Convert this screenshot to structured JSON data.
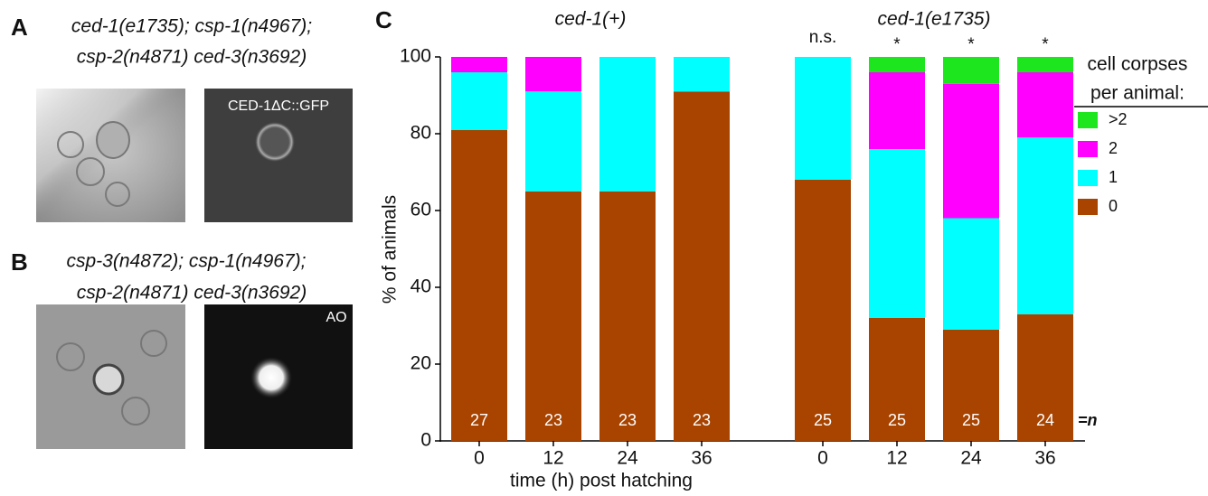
{
  "panels": {
    "A": {
      "label": "A",
      "genotype": [
        "ced-1(e1735); csp-1(n4967);",
        "csp-2(n4871) ced-3(n3692)"
      ],
      "image_label": "CED-1ΔC::GFP"
    },
    "B": {
      "label": "B",
      "genotype": [
        "csp-3(n4872); csp-1(n4967);",
        "csp-2(n4871) ced-3(n3692)"
      ],
      "image_label": "AO"
    },
    "C": {
      "label": "C"
    }
  },
  "chart_data": {
    "type": "stacked_bar",
    "ylabel": "% of animals",
    "xlabel": "time (h) post hatching",
    "groups": [
      {
        "name": "ced-1(+)"
      },
      {
        "name": "ced-1(e1735)"
      }
    ],
    "categories": [
      "0",
      "12",
      "24",
      "36",
      "0",
      "12",
      "24",
      "36"
    ],
    "series": [
      {
        "name": "0",
        "color": "#a84300",
        "values": [
          81,
          65,
          65,
          91,
          68,
          32,
          29,
          33
        ]
      },
      {
        "name": "1",
        "color": "#00ffff",
        "values": [
          15,
          26,
          35,
          9,
          32,
          44,
          29,
          46
        ]
      },
      {
        "name": "2",
        "color": "#ff00ff",
        "values": [
          4,
          9,
          0,
          0,
          0,
          20,
          35,
          17
        ]
      },
      {
        "name": ">2",
        "color": "#1ee61e",
        "values": [
          0,
          0,
          0,
          0,
          0,
          4,
          7,
          4
        ]
      }
    ],
    "n_values": [
      27,
      23,
      23,
      23,
      25,
      25,
      25,
      24
    ],
    "n_label": "=n",
    "annotations": [
      null,
      null,
      null,
      null,
      "n.s.",
      "*",
      "*",
      "*"
    ],
    "legend_title": [
      "cell corpses",
      "per animal:"
    ],
    "ylim": [
      0,
      100
    ],
    "yticks": [
      0,
      20,
      40,
      60,
      80,
      100
    ]
  }
}
